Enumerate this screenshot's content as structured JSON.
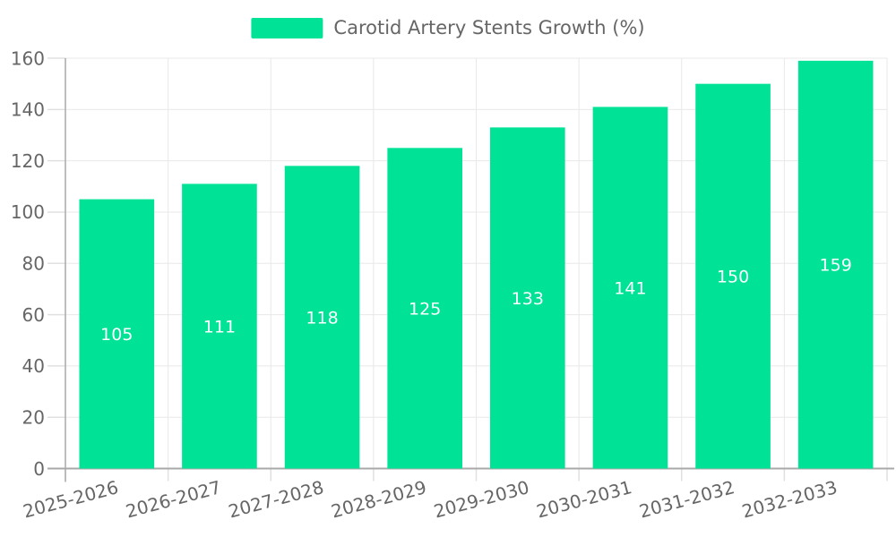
{
  "legend": {
    "series_label": "Carotid Artery Stents Growth (%)",
    "swatch_color": "#00E396",
    "position": "top"
  },
  "chart_data": {
    "type": "bar",
    "title": "Carotid Artery Stents Growth (%)",
    "xlabel": "",
    "ylabel": "",
    "categories": [
      "2025-2026",
      "2026-2027",
      "2027-2028",
      "2028-2029",
      "2029-2030",
      "2030-2031",
      "2031-2032",
      "2032-2033"
    ],
    "values": [
      105,
      111,
      118,
      125,
      133,
      141,
      150,
      159
    ],
    "ylim": [
      0,
      160
    ],
    "yticks": [
      0,
      20,
      40,
      60,
      80,
      100,
      120,
      140,
      160
    ],
    "grid": true,
    "x_label_rotation_deg": -15,
    "legend_position": "top",
    "colors": {
      "bar": "#00E396",
      "data_label": "#ffffff",
      "axis_text": "#666666",
      "gridline": "#e8e8e8",
      "tick": "#e0e0e0",
      "axis_line": "#a9a9a9"
    }
  }
}
